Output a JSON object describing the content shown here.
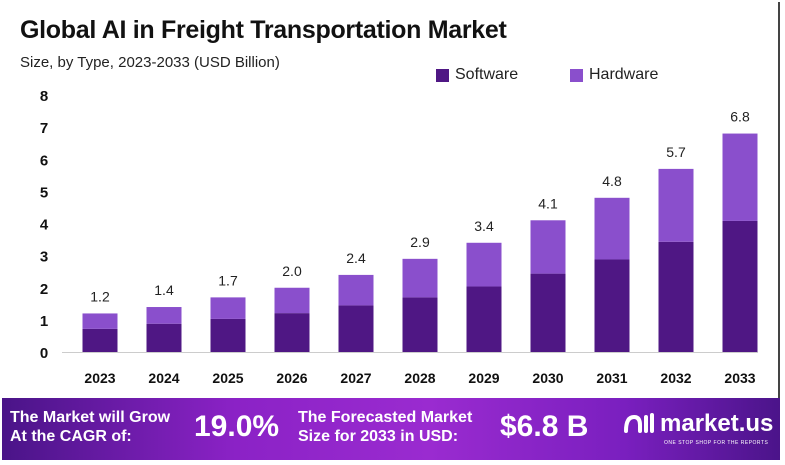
{
  "chart_data": {
    "type": "bar",
    "stacked": true,
    "title": "Global AI in Freight Transportation Market",
    "subtitle": "Size, by Type, 2023-2033 (USD Billion)",
    "categories": [
      "2023",
      "2024",
      "2025",
      "2026",
      "2027",
      "2028",
      "2029",
      "2030",
      "2031",
      "2032",
      "2033"
    ],
    "series": [
      {
        "name": "Software",
        "color": "#4f1784",
        "values": [
          0.72,
          0.88,
          1.03,
          1.21,
          1.45,
          1.7,
          2.04,
          2.44,
          2.88,
          3.43,
          4.08
        ]
      },
      {
        "name": "Hardware",
        "color": "#8a4fcc",
        "values": [
          0.48,
          0.52,
          0.67,
          0.79,
          0.95,
          1.2,
          1.36,
          1.66,
          1.92,
          2.27,
          2.72
        ]
      }
    ],
    "totals_labels": [
      "1.2",
      "1.4",
      "1.7",
      "2.0",
      "2.4",
      "2.9",
      "3.4",
      "4.1",
      "4.8",
      "5.7",
      "6.8"
    ],
    "totals": [
      1.2,
      1.4,
      1.7,
      2.0,
      2.4,
      2.9,
      3.4,
      4.1,
      4.8,
      5.7,
      6.8
    ],
    "yticks": [
      "0",
      "1",
      "2",
      "3",
      "4",
      "5",
      "6",
      "7",
      "8"
    ],
    "ylim": [
      0,
      8
    ],
    "grid": false,
    "legend": "top-right"
  },
  "banner": {
    "cagr_text_1": "The Market will Grow",
    "cagr_text_2": "At the CAGR of:",
    "cagr_value": "19.0%",
    "forecast_text_1": "The Forecasted Market",
    "forecast_text_2": "Size for 2033 in USD:",
    "forecast_value": "$6.8 B",
    "brand": "market.us",
    "brand_tagline": "ONE STOP SHOP FOR THE REPORTS"
  }
}
